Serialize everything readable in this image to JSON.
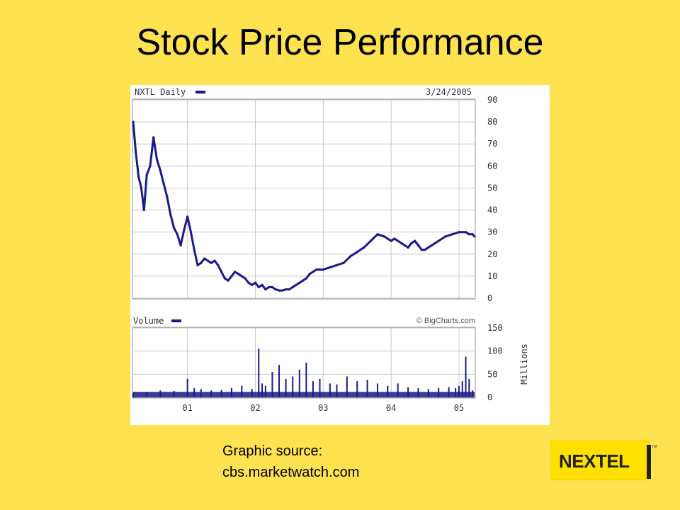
{
  "slide": {
    "title": "Stock Price Performance",
    "source_line1": "Graphic source:",
    "source_line2": "cbs.marketwatch.com",
    "logo_text": "NEXTEL",
    "logo_tm": "TM"
  },
  "colors": {
    "background": "#FFE24F",
    "series": "#1A1A8C",
    "grid": "#C8C8C8",
    "logo_yellow": "#FFE000"
  },
  "chart_data": [
    {
      "type": "line",
      "title": "NXTL Daily",
      "date": "3/24/2005",
      "credit": "© BigCharts.com",
      "x_tick_labels": [
        "01",
        "02",
        "03",
        "04",
        "05"
      ],
      "x_tick_dates": [
        2001.0,
        2002.0,
        2003.0,
        2004.0,
        2005.0
      ],
      "xlim": [
        2000.2,
        2005.23
      ],
      "ylim": [
        0,
        90
      ],
      "yticks": [
        0,
        10,
        20,
        30,
        40,
        50,
        60,
        70,
        80,
        90
      ],
      "grid": true,
      "series": [
        {
          "name": "NXTL Daily",
          "x": [
            2000.2,
            2000.24,
            2000.28,
            2000.32,
            2000.36,
            2000.4,
            2000.45,
            2000.5,
            2000.55,
            2000.6,
            2000.65,
            2000.7,
            2000.75,
            2000.8,
            2000.85,
            2000.9,
            2000.95,
            2001.0,
            2001.05,
            2001.1,
            2001.15,
            2001.2,
            2001.25,
            2001.3,
            2001.35,
            2001.4,
            2001.45,
            2001.5,
            2001.55,
            2001.6,
            2001.65,
            2001.7,
            2001.75,
            2001.8,
            2001.85,
            2001.9,
            2001.95,
            2002.0,
            2002.05,
            2002.1,
            2002.15,
            2002.2,
            2002.25,
            2002.3,
            2002.35,
            2002.4,
            2002.45,
            2002.5,
            2002.55,
            2002.6,
            2002.65,
            2002.7,
            2002.75,
            2002.8,
            2002.85,
            2002.9,
            2002.95,
            2003.0,
            2003.1,
            2003.2,
            2003.3,
            2003.4,
            2003.5,
            2003.6,
            2003.7,
            2003.8,
            2003.9,
            2004.0,
            2004.05,
            2004.1,
            2004.15,
            2004.2,
            2004.25,
            2004.3,
            2004.35,
            2004.4,
            2004.45,
            2004.5,
            2004.55,
            2004.6,
            2004.65,
            2004.7,
            2004.8,
            2004.9,
            2005.0,
            2005.05,
            2005.1,
            2005.15,
            2005.2,
            2005.23
          ],
          "y": [
            80,
            66,
            55,
            50,
            40,
            56,
            60,
            73,
            63,
            58,
            52,
            46,
            38,
            32,
            29,
            24,
            31,
            37,
            30,
            22,
            15,
            16,
            18,
            17,
            16,
            17,
            15,
            12,
            9,
            8,
            10,
            12,
            11,
            10,
            9,
            7,
            6,
            7,
            5,
            6,
            4,
            5,
            5,
            4,
            3.5,
            3.5,
            4,
            4,
            5,
            6,
            7,
            8,
            9,
            11,
            12,
            13,
            13,
            13,
            14,
            15,
            16,
            19,
            21,
            23,
            26,
            29,
            28,
            26,
            27,
            26,
            25,
            24,
            23,
            25,
            26,
            24,
            22,
            22,
            23,
            24,
            25,
            26,
            28,
            29,
            30,
            30,
            30,
            29,
            29,
            28
          ]
        }
      ]
    },
    {
      "type": "bar",
      "title": "Volume",
      "ylabel": "Millions",
      "x_tick_labels": [
        "01",
        "02",
        "03",
        "04",
        "05"
      ],
      "xlim": [
        2000.2,
        2005.23
      ],
      "ylim": [
        0,
        150
      ],
      "yticks": [
        0,
        50,
        100,
        150
      ],
      "grid": true,
      "series": [
        {
          "name": "Volume",
          "x": [
            2000.2,
            2000.4,
            2000.6,
            2000.8,
            2001.0,
            2001.1,
            2001.2,
            2001.35,
            2001.5,
            2001.65,
            2001.8,
            2001.95,
            2002.05,
            2002.1,
            2002.15,
            2002.25,
            2002.35,
            2002.45,
            2002.55,
            2002.65,
            2002.75,
            2002.85,
            2002.95,
            2003.1,
            2003.2,
            2003.35,
            2003.5,
            2003.65,
            2003.8,
            2003.95,
            2004.1,
            2004.25,
            2004.4,
            2004.55,
            2004.7,
            2004.85,
            2004.95,
            2005.0,
            2005.05,
            2005.1,
            2005.15,
            2005.2
          ],
          "y": [
            10,
            12,
            15,
            14,
            40,
            20,
            18,
            15,
            16,
            20,
            25,
            18,
            105,
            30,
            25,
            55,
            70,
            40,
            45,
            60,
            75,
            35,
            40,
            30,
            28,
            45,
            35,
            38,
            30,
            25,
            30,
            22,
            20,
            18,
            20,
            22,
            20,
            25,
            35,
            88,
            40,
            15
          ]
        }
      ]
    }
  ]
}
